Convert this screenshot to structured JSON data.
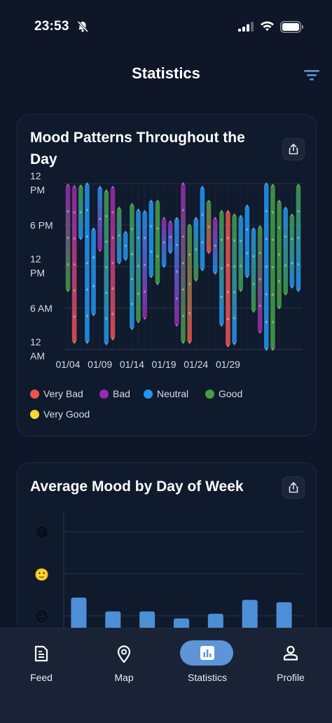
{
  "status_bar": {
    "time": "23:53"
  },
  "header": {
    "title": "Statistics"
  },
  "mood_card": {
    "title_line1": "Mood Patterns Throughout the",
    "title_line2": "Day"
  },
  "average_card": {
    "title": "Average Mood by Day of Week"
  },
  "legend": [
    {
      "label": "Very Bad",
      "color": "#ef5350"
    },
    {
      "label": "Bad",
      "color": "#9c27b0"
    },
    {
      "label": "Neutral",
      "color": "#2196f3"
    },
    {
      "label": "Good",
      "color": "#43a047"
    },
    {
      "label": "Very Good",
      "color": "#fdd835"
    }
  ],
  "nav": [
    {
      "label": "Feed",
      "icon": "feed-icon",
      "active": false
    },
    {
      "label": "Map",
      "icon": "map-pin-icon",
      "active": false
    },
    {
      "label": "Statistics",
      "icon": "statistics-icon",
      "active": true
    },
    {
      "label": "Profile",
      "icon": "profile-icon",
      "active": false
    }
  ],
  "chart_data": [
    {
      "type": "scatter",
      "title": "Mood Patterns Throughout the Day",
      "y_tick_labels": [
        [
          "12",
          "PM"
        ],
        [
          "6 PM"
        ],
        [
          "12",
          "PM"
        ],
        [
          "6 AM"
        ],
        [
          "12",
          "AM"
        ]
      ],
      "x_tick_labels": [
        "01/04",
        "01/09",
        "01/14",
        "01/19",
        "01/24",
        "01/29"
      ],
      "series_colors": {
        "very_bad": "#ef5350",
        "bad": "#9c27b0",
        "neutral": "#2196f3",
        "good": "#43a047",
        "very_good": "#fdd835"
      },
      "days": [
        {
          "start": 8.5,
          "end": 23.8,
          "top": "bad",
          "bottom": "good"
        },
        {
          "start": 1.0,
          "end": 23.6,
          "top": "bad",
          "bottom": "very_bad"
        },
        {
          "start": 16.0,
          "end": 23.7,
          "top": "good",
          "bottom": "neutral"
        },
        {
          "start": 1.0,
          "end": 24.0,
          "top": "neutral",
          "bottom": "neutral"
        },
        {
          "start": 5.0,
          "end": 17.5,
          "top": "neutral",
          "bottom": "neutral"
        },
        {
          "start": 14.3,
          "end": 23.5,
          "top": "neutral",
          "bottom": "bad"
        },
        {
          "start": 0.8,
          "end": 23.0,
          "top": "good",
          "bottom": "neutral"
        },
        {
          "start": 1.5,
          "end": 23.5,
          "top": "bad",
          "bottom": "very_bad"
        },
        {
          "start": 12.5,
          "end": 20.5,
          "top": "good",
          "bottom": "neutral"
        },
        {
          "start": 13.0,
          "end": 17.0,
          "top": "neutral",
          "bottom": "neutral"
        },
        {
          "start": 3.0,
          "end": 21.0,
          "top": "good",
          "bottom": "neutral"
        },
        {
          "start": 4.0,
          "end": 20.2,
          "top": "neutral",
          "bottom": "good"
        },
        {
          "start": 4.5,
          "end": 20.0,
          "top": "neutral",
          "bottom": "bad"
        },
        {
          "start": 10.5,
          "end": 21.5,
          "top": "neutral",
          "bottom": "neutral"
        },
        {
          "start": 9.5,
          "end": 21.5,
          "top": "good",
          "bottom": "good"
        },
        {
          "start": 12.0,
          "end": 19.0,
          "top": "bad",
          "bottom": "neutral"
        },
        {
          "start": 14.0,
          "end": 18.5,
          "top": "bad",
          "bottom": "neutral"
        },
        {
          "start": 3.5,
          "end": 19.0,
          "top": "neutral",
          "bottom": "bad"
        },
        {
          "start": 1.0,
          "end": 24.0,
          "top": "bad",
          "bottom": "good"
        },
        {
          "start": 1.0,
          "end": 18.0,
          "top": "good",
          "bottom": "very_bad"
        },
        {
          "start": 10.0,
          "end": 19.0,
          "top": "neutral",
          "bottom": "good"
        },
        {
          "start": 11.5,
          "end": 23.5,
          "top": "neutral",
          "bottom": "neutral"
        },
        {
          "start": 14.0,
          "end": 21.5,
          "top": "good",
          "bottom": "very_bad"
        },
        {
          "start": 11.0,
          "end": 19.0,
          "top": "bad",
          "bottom": "neutral"
        },
        {
          "start": 3.5,
          "end": 20.0,
          "top": "good",
          "bottom": "neutral"
        },
        {
          "start": 0.5,
          "end": 20.0,
          "top": "very_bad",
          "bottom": "very_bad"
        },
        {
          "start": 0.8,
          "end": 19.5,
          "top": "good",
          "bottom": "neutral"
        },
        {
          "start": 8.5,
          "end": 19.3,
          "top": "neutral",
          "bottom": "good"
        },
        {
          "start": 10.5,
          "end": 20.8,
          "top": "neutral",
          "bottom": "neutral"
        },
        {
          "start": 5.5,
          "end": 17.5,
          "top": "neutral",
          "bottom": "good"
        },
        {
          "start": 2.5,
          "end": 17.8,
          "top": "good",
          "bottom": "bad"
        },
        {
          "start": 0.0,
          "end": 24.0,
          "top": "neutral",
          "bottom": "neutral"
        },
        {
          "start": 0.0,
          "end": 23.8,
          "top": "good",
          "bottom": "good"
        },
        {
          "start": 6.0,
          "end": 21.5,
          "top": "good",
          "bottom": "good"
        },
        {
          "start": 8.0,
          "end": 20.5,
          "top": "neutral",
          "bottom": "good"
        },
        {
          "start": 9.0,
          "end": 19.5,
          "top": "good",
          "bottom": "neutral"
        },
        {
          "start": 8.5,
          "end": 23.8,
          "top": "good",
          "bottom": "neutral"
        }
      ]
    },
    {
      "type": "bar",
      "title": "Average Mood by Day of Week",
      "y_tick_icons": [
        "😄",
        "🙂",
        "😐"
      ],
      "values": [
        3.0,
        2.7,
        2.7,
        2.55,
        2.65,
        2.95,
        2.9
      ],
      "ylim": [
        2.3,
        4.5
      ]
    }
  ]
}
